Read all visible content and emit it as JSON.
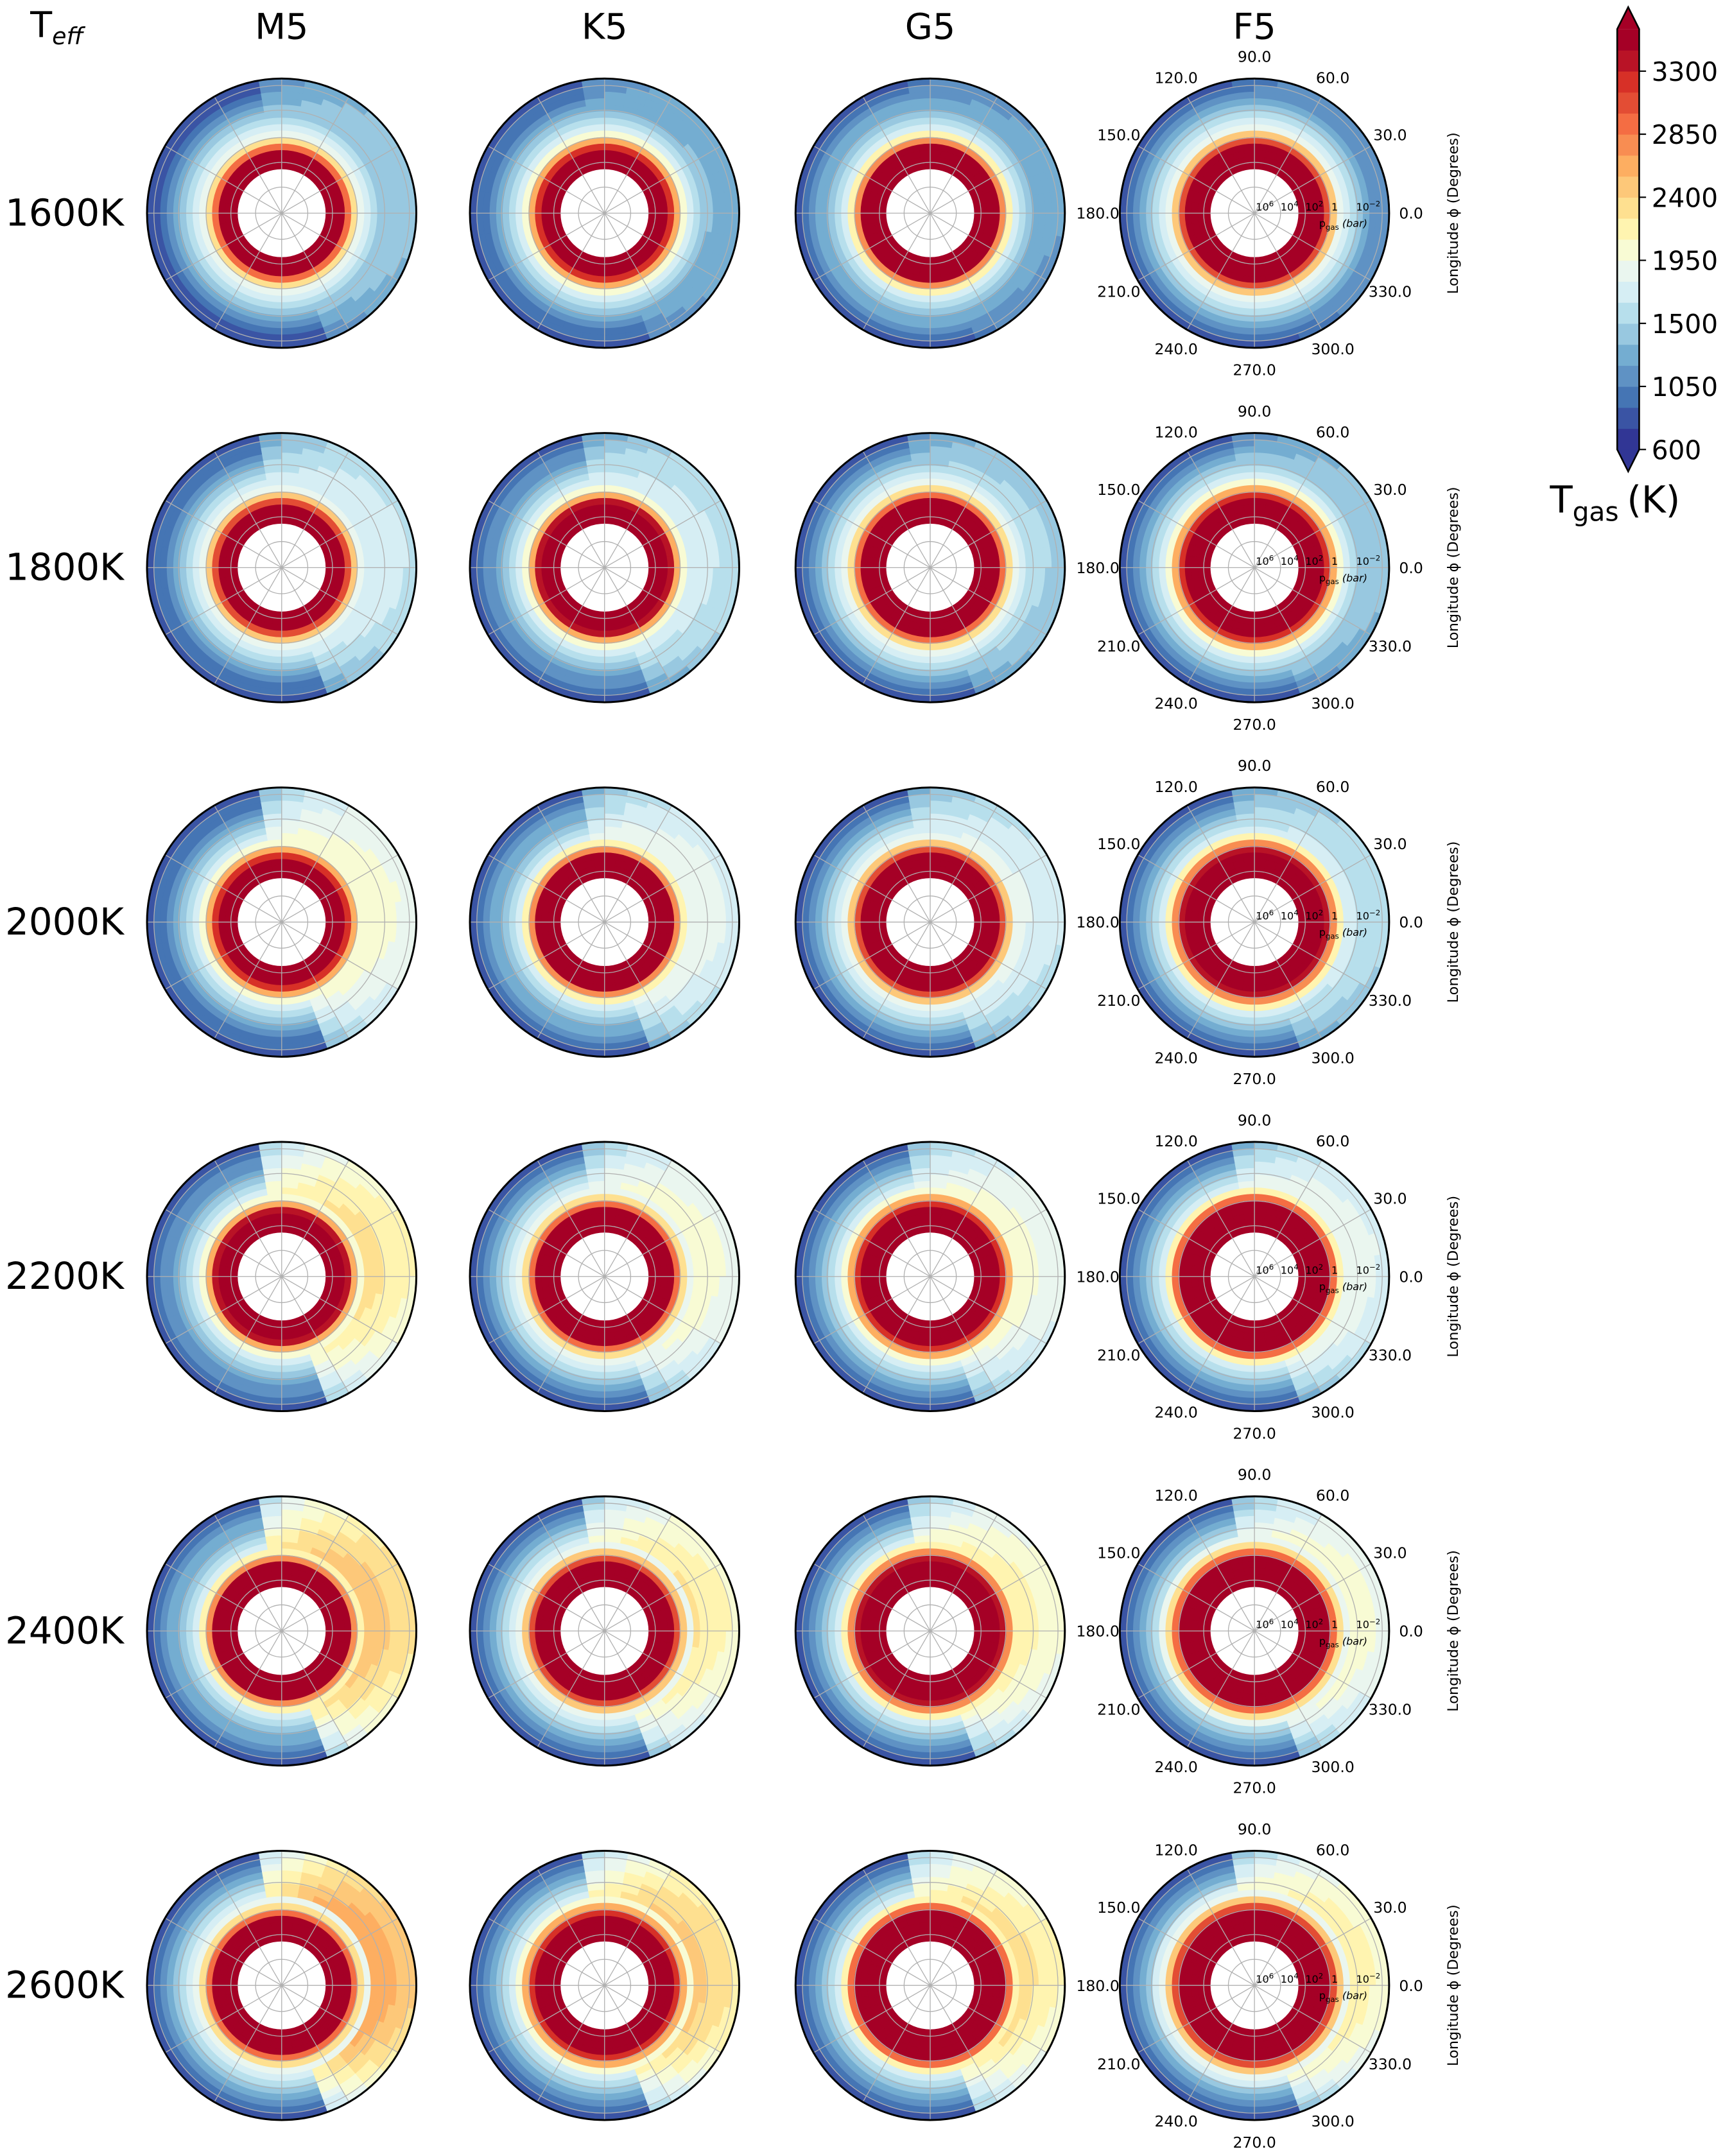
{
  "chart_data": {
    "type": "heatmap",
    "projection": "polar",
    "corner_label": {
      "base": "T",
      "sub": "eff"
    },
    "columns": [
      "M5",
      "K5",
      "G5",
      "F5"
    ],
    "rows": [
      "1600K",
      "1800K",
      "2000K",
      "2200K",
      "2400K",
      "2600K"
    ],
    "angular_axis": {
      "label": "Longitude ϕ (Degrees)",
      "tick_labels": [
        "0.0",
        "30.0",
        "60.0",
        "90.0",
        "120.0",
        "150.0",
        "180.0",
        "210.0",
        "240.0",
        "270.0",
        "300.0",
        "330.0"
      ],
      "tick_values": [
        0,
        30,
        60,
        90,
        120,
        150,
        180,
        210,
        240,
        270,
        300,
        330
      ]
    },
    "radial_axis": {
      "label_base": "p",
      "label_sub": "gas",
      "label_unit": "bar",
      "scale": "log",
      "tick_labels": [
        {
          "base": "10",
          "exp": "6"
        },
        {
          "base": "10",
          "exp": "4"
        },
        {
          "base": "10",
          "exp": "2"
        },
        {
          "base": "1",
          "exp": ""
        },
        {
          "base": "10",
          "exp": "−2"
        }
      ],
      "tick_values": [
        1000000.0,
        10000.0,
        100.0,
        1,
        0.01
      ],
      "labels_shown_on_column": "F5"
    },
    "colorbar": {
      "label_base": "T",
      "label_sub": "gas",
      "label_unit": "(K)",
      "ticks": [
        600,
        1050,
        1500,
        1950,
        2400,
        2850,
        3300
      ],
      "tick_labels": [
        "600",
        "1050",
        "1500",
        "1950",
        "2400",
        "2850",
        "3300"
      ],
      "range": [
        600,
        3600
      ],
      "extend": "both",
      "colormap": "RdYlBu_r",
      "levels": 20,
      "colors": [
        "#313695",
        "#3a54a4",
        "#4575b4",
        "#5f92c4",
        "#74add1",
        "#98c8e0",
        "#b7dfec",
        "#d6eef4",
        "#eaf6ef",
        "#f8fbd4",
        "#fff4b0",
        "#fee090",
        "#fdc879",
        "#fdae61",
        "#f88d52",
        "#f46d43",
        "#e34d34",
        "#d73027",
        "#b91326",
        "#a50026"
      ]
    },
    "panels_approx": {
      "description_keys": [
        "dayside_upper_T_K",
        "nightside_upper_T_K",
        "deep_T_K"
      ],
      "values": [
        [
          [
            1500,
            700,
            3500
          ],
          [
            1400,
            700,
            3500
          ],
          [
            1300,
            700,
            3500
          ],
          [
            1200,
            700,
            3500
          ]
        ],
        [
          [
            1800,
            700,
            3500
          ],
          [
            1750,
            700,
            3500
          ],
          [
            1600,
            700,
            3500
          ],
          [
            1500,
            700,
            3500
          ]
        ],
        [
          [
            2100,
            700,
            3500
          ],
          [
            1950,
            700,
            3500
          ],
          [
            1850,
            700,
            3500
          ],
          [
            1700,
            700,
            3500
          ]
        ],
        [
          [
            2350,
            700,
            3500
          ],
          [
            2100,
            700,
            3500
          ],
          [
            2050,
            700,
            3500
          ],
          [
            1950,
            700,
            3500
          ]
        ],
        [
          [
            2550,
            700,
            3500
          ],
          [
            2300,
            700,
            3500
          ],
          [
            2200,
            700,
            3500
          ],
          [
            2100,
            700,
            3500
          ]
        ],
        [
          [
            2750,
            700,
            3500
          ],
          [
            2500,
            700,
            3500
          ],
          [
            2350,
            700,
            3500
          ],
          [
            2250,
            700,
            3500
          ]
        ]
      ]
    }
  }
}
